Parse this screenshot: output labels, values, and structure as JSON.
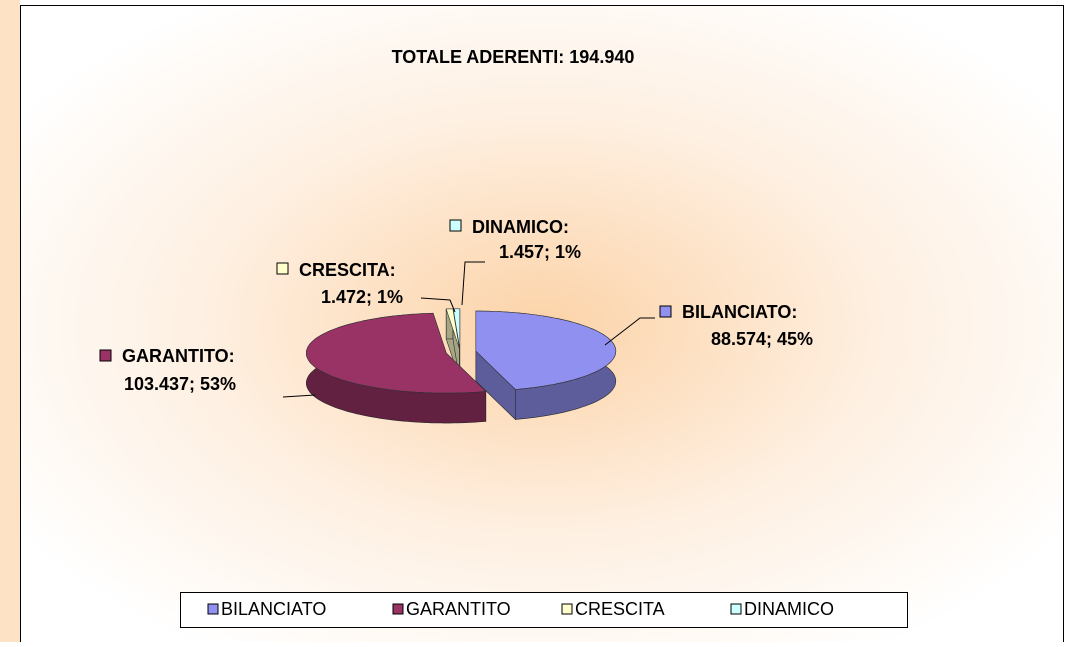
{
  "chart_data": {
    "type": "pie3d",
    "title": "TOTALE ADERENTI: 194.940",
    "categories": [
      "BILANCIATO",
      "GARANTITO",
      "CRESCITA",
      "DINAMICO"
    ],
    "label_titles": [
      "BILANCIATO:",
      "GARANTITO:",
      "CRESCITA:",
      "DINAMICO:"
    ],
    "values": [
      88574,
      103437,
      1472,
      1457
    ],
    "value_labels": [
      "88.574; 45%",
      "103.437; 53%",
      "1.472; 1%",
      "1.457; 1%"
    ],
    "colors": [
      "#9090f0",
      "#993366",
      "#ffffcc",
      "#ccffff"
    ],
    "legend": "bottom"
  }
}
